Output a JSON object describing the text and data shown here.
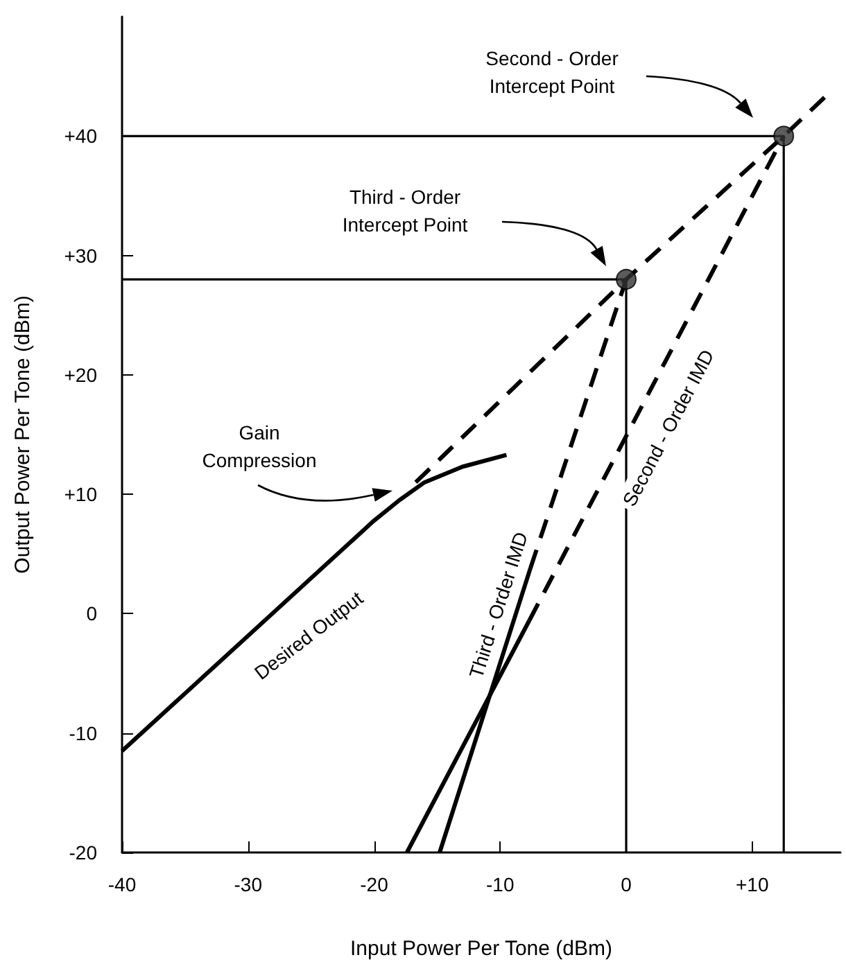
{
  "chart_data": {
    "type": "line",
    "xlabel": "Input Power Per Tone (dBm)",
    "ylabel": "Output Power Per Tone (dBm)",
    "xlim": [
      -40,
      17
    ],
    "ylim": [
      -20,
      50
    ],
    "xticks": [
      -40,
      -30,
      -20,
      -10,
      0,
      {
        "value": 10,
        "label": "+10"
      }
    ],
    "yticks": [
      -20,
      -10,
      0,
      {
        "value": 10,
        "label": "+10"
      },
      {
        "value": 20,
        "label": "+20"
      },
      {
        "value": 30,
        "label": "+30"
      },
      {
        "value": 40,
        "label": "+40"
      }
    ],
    "grid": false,
    "marker": "none",
    "series": [
      {
        "name": "Desired Output",
        "color": "#000000",
        "line_style": "solid",
        "x": [
          -40,
          -20,
          -18,
          -16,
          -13,
          -9.5
        ],
        "values": [
          -11.5,
          7.8,
          9.5,
          11,
          12.3,
          13.3
        ]
      },
      {
        "color": "#000000",
        "line_style": "dashed",
        "x": [
          -16.7,
          0,
          12.5,
          16.2
        ],
        "values": [
          11,
          28,
          40,
          43.7
        ]
      },
      {
        "name": "Third - Order IMD",
        "color": "#000000",
        "line_style": "solid",
        "x": [
          -14.8,
          -7.6
        ],
        "values": [
          -20,
          3.8
        ]
      },
      {
        "color": "#000000",
        "line_style": "dashed",
        "x": [
          -7.6,
          0
        ],
        "values": [
          3.8,
          28
        ]
      },
      {
        "color": "#000000",
        "line_style": "solid",
        "x": [
          -17.4,
          -7.7
        ],
        "values": [
          -20,
          -0.6
        ]
      },
      {
        "name": "Second - Order IMD",
        "color": "#000000",
        "line_style": "dashed",
        "x": [
          -7.7,
          12.5
        ],
        "values": [
          -0.6,
          40
        ]
      },
      {
        "color": "#000000",
        "line_style": "solid",
        "x": [
          -40,
          0,
          0
        ],
        "values": [
          28,
          28,
          -20
        ]
      },
      {
        "color": "#000000",
        "line_style": "solid",
        "x": [
          -40,
          12.5,
          12.5
        ],
        "values": [
          40,
          40,
          -20
        ]
      },
      {
        "type": "scatter",
        "marker": "circle",
        "color": "#333333",
        "x": [
          0,
          12.5
        ],
        "values": [
          28,
          40
        ]
      }
    ],
    "annotations": [
      "Gain\nCompression",
      "Third - Order\nIntercept Point",
      "Second - Order\nIntercept Point"
    ]
  }
}
